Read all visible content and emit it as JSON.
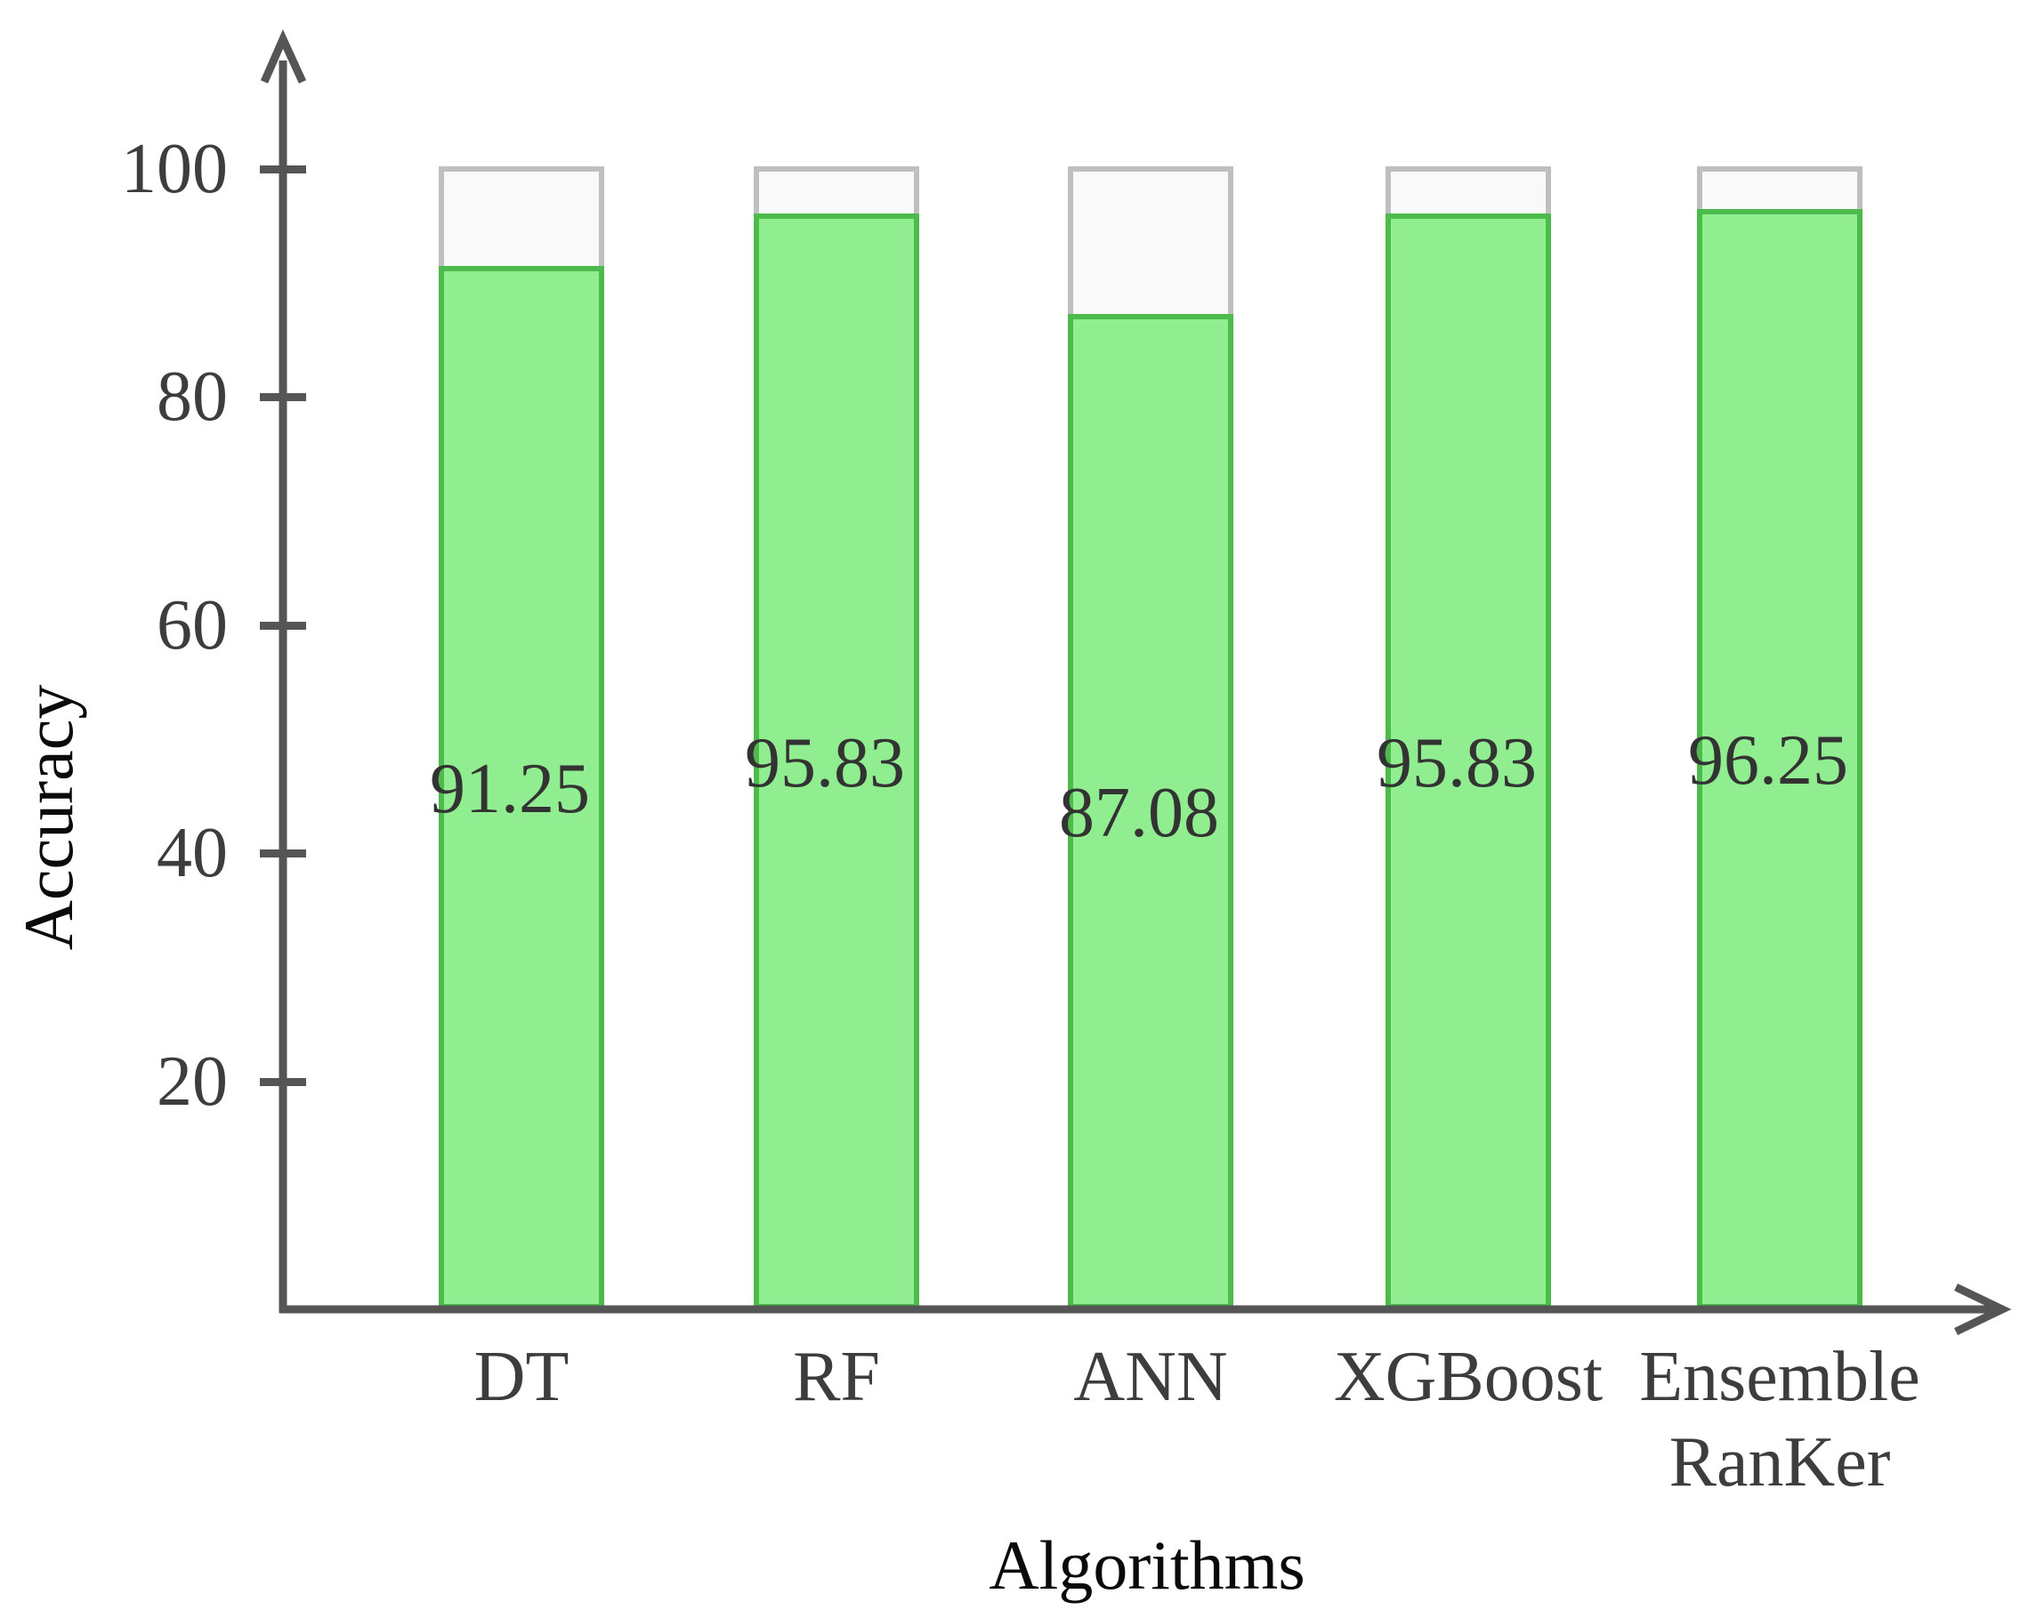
{
  "chart_data": {
    "type": "bar",
    "title": "",
    "xlabel": "Algorithms",
    "ylabel": "Accuracy",
    "categories": [
      "DT",
      "RF",
      "ANN",
      "XGBoost",
      "Ensemble\nRanKer"
    ],
    "values": [
      91.25,
      95.83,
      87.08,
      95.83,
      96.25
    ],
    "value_labels": [
      "91.25",
      "95.83",
      "87.08",
      "95.83",
      "96.25"
    ],
    "series": [
      {
        "name": "Accuracy",
        "values": [
          91.25,
          95.83,
          87.08,
          95.83,
          96.25
        ]
      }
    ],
    "ylim": [
      0,
      100
    ],
    "y_ticks": [
      20,
      40,
      60,
      80,
      100
    ],
    "background_bar_value": 100,
    "grid": false,
    "legend": "none",
    "value_label_position": "middle-of-bar",
    "colors": {
      "bar_fill": "#90ee90",
      "bar_border": "#4cbb4c",
      "track_fill": "#f9f9f9",
      "track_border": "#bfbfbf",
      "axis": "#555555",
      "tick_text": "#3d3d3d",
      "value_text": "#333333",
      "axis_title_text": "#0a0a0a"
    }
  }
}
